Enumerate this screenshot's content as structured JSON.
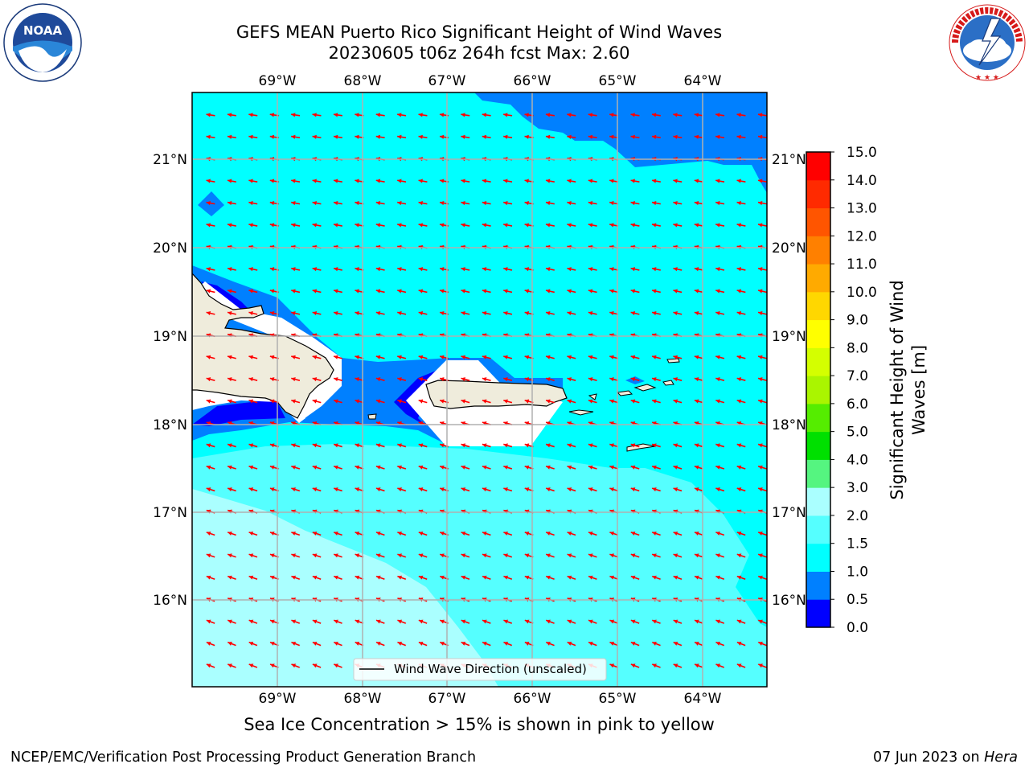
{
  "title": {
    "line1": "GEFS MEAN Puerto Rico Significant Height of Wind Waves",
    "line2": "20230605 t06z 264h fcst   Max: 2.60"
  },
  "logos": {
    "noaa_text": "NOAA",
    "noaa_ring": "NATIONAL OCEANIC AND ATMOSPHERIC ADMINISTRATION · U.S. DEPARTMENT OF COMMERCE",
    "nws_ring": "NATIONAL WEATHER SERVICE"
  },
  "map": {
    "lon_labels": [
      "69°W",
      "68°W",
      "67°W",
      "66°W",
      "65°W",
      "64°W"
    ],
    "lat_labels": [
      "21°N",
      "20°N",
      "19°N",
      "18°N",
      "17°N",
      "16°N"
    ],
    "legend_label": "Wind Wave Direction (unscaled)",
    "arrow_color": "#ff0000",
    "land_color": "#efecdc"
  },
  "colorbar": {
    "label_line1": "Significant Height of Wind",
    "label_line2": "Waves [m]",
    "ticks": [
      "0.0",
      "0.5",
      "1.0",
      "1.5",
      "2.0",
      "3.0",
      "4.0",
      "5.0",
      "6.0",
      "7.0",
      "8.0",
      "9.0",
      "10.0",
      "11.0",
      "12.0",
      "13.0",
      "14.0",
      "15.0"
    ],
    "colors": [
      "#0000ff",
      "#0080ff",
      "#00ffff",
      "#55ffff",
      "#aaffff",
      "#55f580",
      "#00e000",
      "#55ed00",
      "#aaf500",
      "#d4ff00",
      "#ffff00",
      "#ffd700",
      "#ffaa00",
      "#ff8000",
      "#ff5500",
      "#ff2a00",
      "#ff0000"
    ]
  },
  "subtitle": "Sea Ice Concentration > 15% is shown in pink to yellow",
  "footer": {
    "left": "NCEP/EMC/Verification Post Processing Product Generation Branch",
    "right_prefix": "07 Jun 2023 on ",
    "right_italic": "Hera"
  }
}
